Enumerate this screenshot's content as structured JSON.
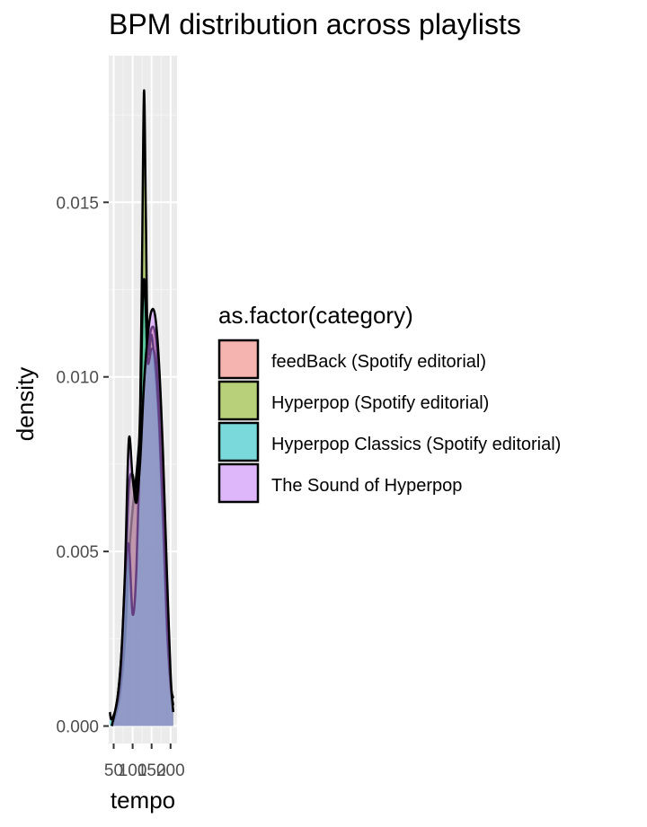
{
  "chart_data": {
    "type": "area",
    "title": "BPM distribution across playlists",
    "xlabel": "tempo",
    "ylabel": "density",
    "xlim": [
      37,
      217
    ],
    "ylim": [
      -0.0005,
      0.0192
    ],
    "x_ticks": [
      50,
      100,
      150,
      200
    ],
    "x_tick_labels": [
      "50",
      "100",
      "150",
      "200"
    ],
    "y_ticks": [
      0,
      0.005,
      0.01,
      0.015
    ],
    "y_tick_labels": [
      "0.000",
      "0.005",
      "0.010",
      "0.015"
    ],
    "grid": true,
    "legend": {
      "title": "as.factor(category)",
      "placement": "right"
    },
    "series": [
      {
        "name": "feedBack (Spotify editorial)",
        "color": "#F8766D",
        "x": [
          45,
          60,
          70,
          80,
          90,
          100,
          110,
          120,
          130,
          140,
          150,
          160,
          170,
          180,
          190,
          200,
          207
        ],
        "values": [
          0.0,
          0.0005,
          0.0012,
          0.0025,
          0.0048,
          0.0062,
          0.0072,
          0.0085,
          0.0098,
          0.0108,
          0.0114,
          0.0112,
          0.0098,
          0.0072,
          0.0038,
          0.0012,
          0.0004
        ]
      },
      {
        "name": "Hyperpop (Spotify editorial)",
        "color": "#7CAE00",
        "x": [
          45,
          60,
          70,
          80,
          90,
          100,
          110,
          120,
          125,
          130,
          135,
          140,
          150,
          160,
          170,
          180,
          190,
          200,
          207
        ],
        "values": [
          0.0,
          0.0008,
          0.002,
          0.004,
          0.0068,
          0.0072,
          0.0066,
          0.0092,
          0.0135,
          0.0182,
          0.0145,
          0.0108,
          0.0112,
          0.0102,
          0.0085,
          0.0058,
          0.0028,
          0.0012,
          0.0008
        ]
      },
      {
        "name": "Hyperpop Classics (Spotify editorial)",
        "color": "#00BFC4",
        "x": [
          40,
          45,
          60,
          70,
          80,
          90,
          100,
          110,
          120,
          125,
          130,
          135,
          140,
          150,
          160,
          170,
          180,
          190,
          200,
          207
        ],
        "values": [
          0.0004,
          0.0002,
          0.0007,
          0.0018,
          0.0042,
          0.0052,
          0.0032,
          0.0045,
          0.0085,
          0.0115,
          0.0128,
          0.0118,
          0.0104,
          0.0108,
          0.0105,
          0.0088,
          0.0062,
          0.0032,
          0.0012,
          0.0006
        ]
      },
      {
        "name": "The Sound of Hyperpop",
        "color": "#C77CFF",
        "x": [
          45,
          60,
          70,
          80,
          90,
          100,
          110,
          120,
          130,
          140,
          150,
          160,
          170,
          180,
          190,
          200,
          207
        ],
        "values": [
          0.0,
          0.0008,
          0.002,
          0.0045,
          0.0082,
          0.0071,
          0.0064,
          0.0076,
          0.0098,
          0.0112,
          0.0119,
          0.0117,
          0.0103,
          0.0078,
          0.0045,
          0.0015,
          0.0004
        ]
      }
    ]
  }
}
